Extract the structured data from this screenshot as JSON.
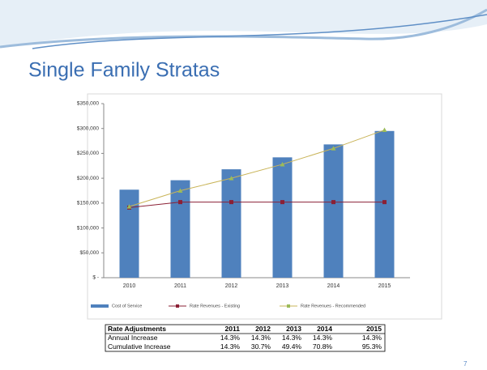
{
  "slide": {
    "title": "Single Family Stratas",
    "page_number": "7"
  },
  "chart_data": {
    "type": "bar-line",
    "categories": [
      "2010",
      "2011",
      "2012",
      "2013",
      "2014",
      "2015"
    ],
    "series": [
      {
        "name": "Cost of Service",
        "type": "bar",
        "color": "#4f81bd",
        "values": [
          177000,
          196000,
          218000,
          242000,
          268000,
          295000
        ]
      },
      {
        "name": "Rate Revenues - Existing",
        "type": "line",
        "marker": "square",
        "color": "#8b2035",
        "values": [
          141000,
          152000,
          152000,
          152000,
          152000,
          152000
        ]
      },
      {
        "name": "Rate Revenues - Recommended",
        "type": "line",
        "marker": "triangle",
        "color": "#c9b458",
        "values": [
          143000,
          175000,
          200000,
          228000,
          260000,
          297000
        ]
      }
    ],
    "ylim": [
      0,
      350000
    ],
    "yticks": [
      {
        "value": 0,
        "label": "$ -"
      },
      {
        "value": 50000,
        "label": "$50,000"
      },
      {
        "value": 100000,
        "label": "$100,000"
      },
      {
        "value": 150000,
        "label": "$150,000"
      },
      {
        "value": 200000,
        "label": "$200,000"
      },
      {
        "value": 250000,
        "label": "$250,000"
      },
      {
        "value": 300000,
        "label": "$300,000"
      },
      {
        "value": 350000,
        "label": "$350,000"
      }
    ],
    "grid": false,
    "legend": "bottom"
  },
  "table": {
    "header": [
      "Rate Adjustments",
      "2011",
      "2012",
      "2013",
      "2014",
      "2015"
    ],
    "rows": [
      [
        "Annual Increase",
        "14.3%",
        "14.3%",
        "14.3%",
        "14.3%",
        "14.3%"
      ],
      [
        "Cumulative Increase",
        "14.3%",
        "30.7%",
        "49.4%",
        "70.8%",
        "95.3%"
      ]
    ]
  }
}
